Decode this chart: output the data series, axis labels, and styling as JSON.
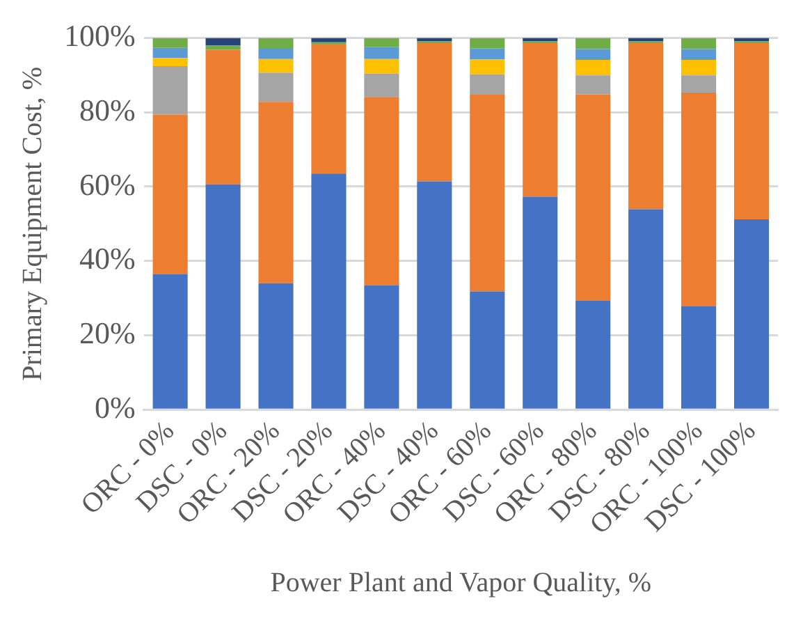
{
  "chart_data": {
    "type": "bar",
    "stacked": true,
    "xlabel": "Power Plant and Vapor Quality, %",
    "ylabel": "Primary Equipment Cost, %",
    "categories": [
      "ORC - 0%",
      "DSC - 0%",
      "ORC - 20%",
      "DSC - 20%",
      "ORC - 40%",
      "DSC - 40%",
      "ORC - 60%",
      "DSC - 60%",
      "ORC - 80%",
      "DSC - 80%",
      "ORC - 100%",
      "DSC - 100%"
    ],
    "series": [
      {
        "color": "#4472c4",
        "values": [
          36.4,
          60.6,
          34.0,
          63.5,
          33.5,
          61.4,
          31.8,
          57.3,
          29.3,
          53.9,
          27.8,
          51.2
        ]
      },
      {
        "color": "#ed7d31",
        "values": [
          43.0,
          36.2,
          48.8,
          34.9,
          50.6,
          37.2,
          52.9,
          41.3,
          55.5,
          44.7,
          57.5,
          47.4
        ]
      },
      {
        "color": "#a5a5a5",
        "values": [
          13.0,
          0,
          7.8,
          0,
          6.3,
          0,
          5.5,
          0,
          5.1,
          0,
          4.6,
          0
        ]
      },
      {
        "color": "#ffc000",
        "values": [
          2.2,
          0,
          3.7,
          0,
          3.9,
          0,
          4.0,
          0,
          4.2,
          0,
          4.2,
          0
        ]
      },
      {
        "color": "#5b9bd5",
        "values": [
          2.7,
          0,
          2.8,
          0,
          3.2,
          0,
          3.0,
          0,
          2.9,
          0,
          2.9,
          0
        ]
      },
      {
        "color": "#70ad47",
        "values": [
          2.7,
          1.1,
          2.9,
          0.4,
          2.5,
          0.5,
          2.8,
          0.5,
          3.0,
          0.5,
          3.0,
          0.5
        ]
      },
      {
        "color": "#264478",
        "values": [
          0,
          2.1,
          0,
          1.2,
          0,
          0.9,
          0,
          0.9,
          0,
          0.9,
          0,
          0.9
        ]
      }
    ],
    "ylim": [
      0,
      100
    ],
    "yticks": [
      {
        "value": 0,
        "label": "0%"
      },
      {
        "value": 20,
        "label": "20%"
      },
      {
        "value": 40,
        "label": "40%"
      },
      {
        "value": 60,
        "label": "60%"
      },
      {
        "value": 80,
        "label": "80%"
      },
      {
        "value": 100,
        "label": "100%"
      }
    ],
    "grid": "y",
    "legend": false
  }
}
